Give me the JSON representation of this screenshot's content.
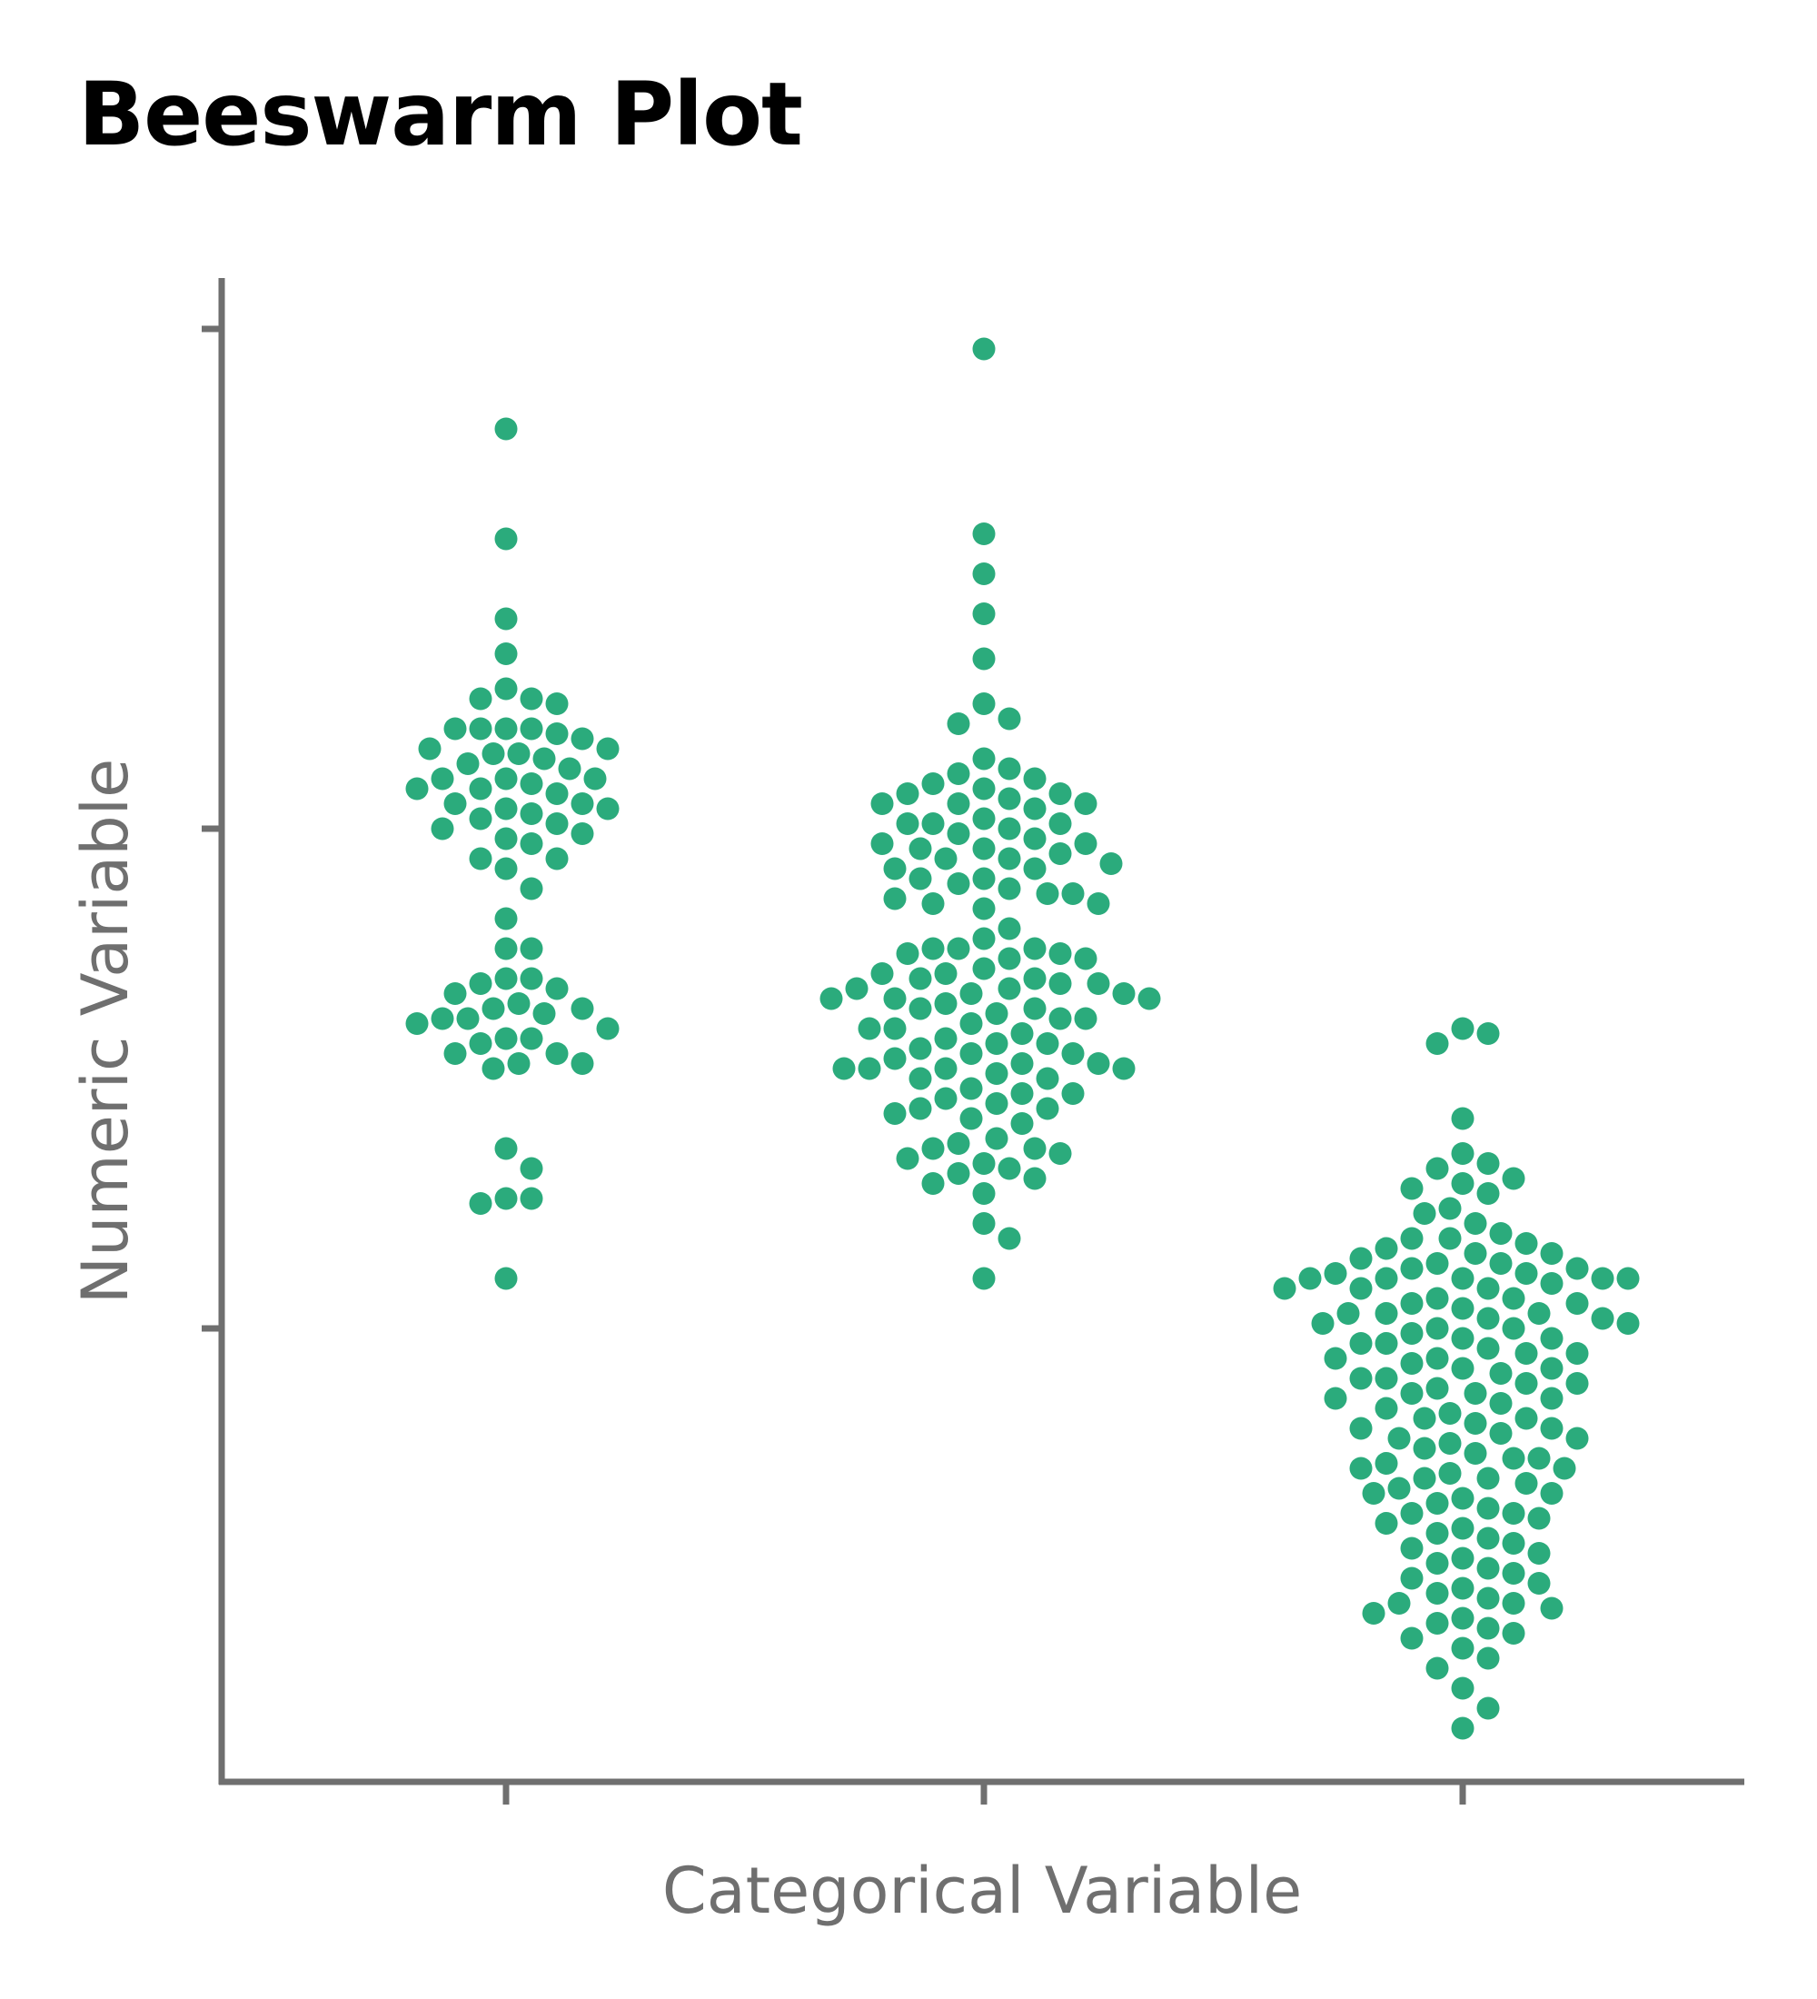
{
  "chart_data": {
    "type": "scatter",
    "subtype": "beeswarm",
    "title": "Beeswarm Plot",
    "xlabel": "Categorical Variable",
    "ylabel": "Numeric Variable",
    "categories": [
      "",
      "",
      ""
    ],
    "x_tick_labels_shown": false,
    "y_tick_labels_shown": false,
    "ylim": [
      -0.9,
      2.1
    ],
    "yticks": [
      0,
      1,
      2
    ],
    "grid": false,
    "legend": "none",
    "colors": {
      "point": "#2bab7c",
      "axis": "#6f6f6f",
      "title": "#000000"
    },
    "series": [
      {
        "category_index": 0,
        "values": [
          1.8,
          1.58,
          1.42,
          1.35,
          1.28,
          1.26,
          1.26,
          1.25,
          1.2,
          1.2,
          1.2,
          1.2,
          1.19,
          1.18,
          1.16,
          1.16,
          1.15,
          1.15,
          1.14,
          1.13,
          1.12,
          1.1,
          1.1,
          1.1,
          1.09,
          1.08,
          1.08,
          1.07,
          1.05,
          1.05,
          1.04,
          1.04,
          1.03,
          1.02,
          1.01,
          1.0,
          0.99,
          0.98,
          0.97,
          0.94,
          0.94,
          0.92,
          0.88,
          0.82,
          0.76,
          0.76,
          0.7,
          0.7,
          0.69,
          0.68,
          0.67,
          0.65,
          0.64,
          0.64,
          0.63,
          0.62,
          0.62,
          0.61,
          0.6,
          0.58,
          0.58,
          0.57,
          0.55,
          0.55,
          0.53,
          0.53,
          0.52,
          0.36,
          0.32,
          0.26,
          0.26,
          0.25,
          0.1
        ]
      },
      {
        "category_index": 1,
        "values": [
          1.96,
          1.59,
          1.51,
          1.43,
          1.34,
          1.25,
          1.22,
          1.21,
          1.14,
          1.12,
          1.11,
          1.1,
          1.09,
          1.08,
          1.07,
          1.07,
          1.06,
          1.05,
          1.05,
          1.05,
          1.04,
          1.02,
          1.01,
          1.01,
          1.01,
          1.0,
          0.99,
          0.98,
          0.97,
          0.97,
          0.96,
          0.96,
          0.95,
          0.94,
          0.94,
          0.93,
          0.92,
          0.92,
          0.9,
          0.9,
          0.89,
          0.88,
          0.87,
          0.87,
          0.86,
          0.85,
          0.85,
          0.84,
          0.8,
          0.78,
          0.76,
          0.76,
          0.76,
          0.75,
          0.75,
          0.74,
          0.74,
          0.72,
          0.71,
          0.71,
          0.7,
          0.7,
          0.69,
          0.69,
          0.68,
          0.68,
          0.67,
          0.67,
          0.66,
          0.66,
          0.66,
          0.65,
          0.64,
          0.64,
          0.63,
          0.62,
          0.62,
          0.61,
          0.6,
          0.6,
          0.59,
          0.58,
          0.57,
          0.57,
          0.56,
          0.55,
          0.55,
          0.54,
          0.53,
          0.53,
          0.52,
          0.52,
          0.52,
          0.52,
          0.51,
          0.5,
          0.5,
          0.48,
          0.47,
          0.47,
          0.46,
          0.45,
          0.44,
          0.44,
          0.43,
          0.42,
          0.41,
          0.38,
          0.37,
          0.36,
          0.36,
          0.35,
          0.34,
          0.33,
          0.32,
          0.31,
          0.3,
          0.29,
          0.27,
          0.21,
          0.18,
          0.1
        ]
      },
      {
        "category_index": 2,
        "values": [
          0.6,
          0.59,
          0.57,
          0.42,
          0.35,
          0.33,
          0.32,
          0.3,
          0.29,
          0.28,
          0.27,
          0.24,
          0.23,
          0.21,
          0.19,
          0.18,
          0.18,
          0.17,
          0.16,
          0.15,
          0.15,
          0.14,
          0.13,
          0.13,
          0.12,
          0.12,
          0.11,
          0.11,
          0.1,
          0.1,
          0.1,
          0.1,
          0.1,
          0.09,
          0.08,
          0.08,
          0.08,
          0.06,
          0.06,
          0.05,
          0.05,
          0.04,
          0.03,
          0.03,
          0.03,
          0.02,
          0.02,
          0.01,
          0.01,
          0.0,
          0.0,
          -0.01,
          -0.02,
          -0.02,
          -0.03,
          -0.03,
          -0.04,
          -0.05,
          -0.05,
          -0.06,
          -0.06,
          -0.07,
          -0.08,
          -0.08,
          -0.09,
          -0.1,
          -0.1,
          -0.11,
          -0.11,
          -0.12,
          -0.13,
          -0.13,
          -0.14,
          -0.14,
          -0.15,
          -0.16,
          -0.17,
          -0.18,
          -0.18,
          -0.19,
          -0.2,
          -0.2,
          -0.21,
          -0.22,
          -0.22,
          -0.23,
          -0.24,
          -0.25,
          -0.26,
          -0.26,
          -0.27,
          -0.28,
          -0.28,
          -0.29,
          -0.3,
          -0.3,
          -0.31,
          -0.32,
          -0.33,
          -0.33,
          -0.34,
          -0.35,
          -0.36,
          -0.37,
          -0.37,
          -0.38,
          -0.39,
          -0.4,
          -0.41,
          -0.42,
          -0.43,
          -0.44,
          -0.45,
          -0.46,
          -0.47,
          -0.48,
          -0.49,
          -0.5,
          -0.51,
          -0.52,
          -0.53,
          -0.54,
          -0.55,
          -0.55,
          -0.56,
          -0.57,
          -0.58,
          -0.59,
          -0.6,
          -0.61,
          -0.62,
          -0.64,
          -0.66,
          -0.68,
          -0.72,
          -0.76,
          -0.8
        ]
      }
    ]
  }
}
